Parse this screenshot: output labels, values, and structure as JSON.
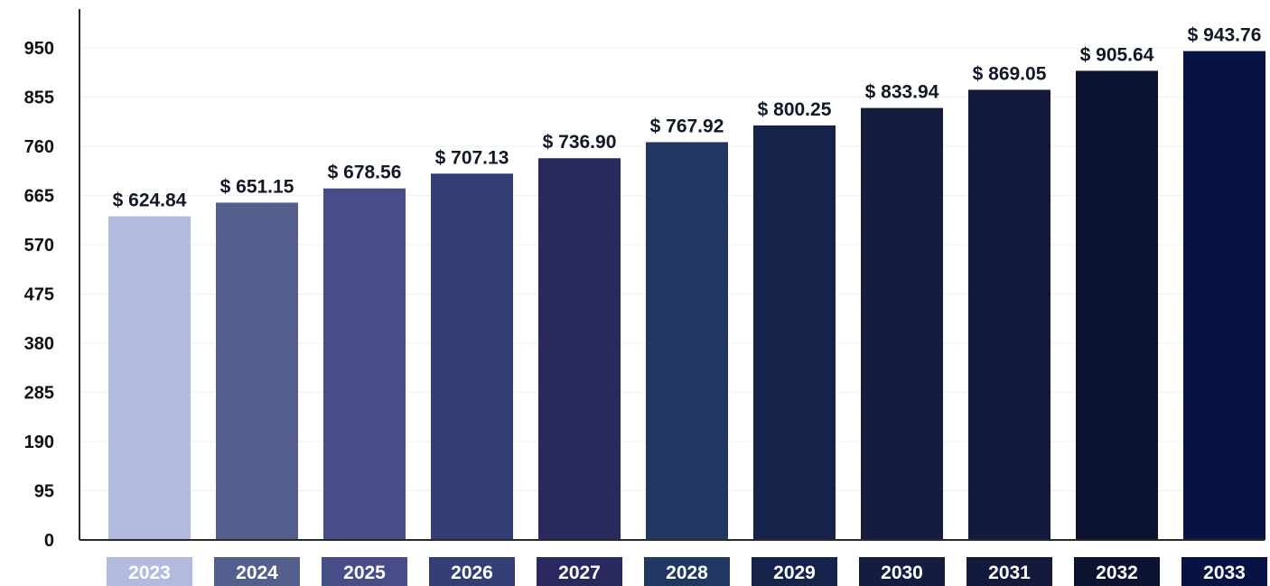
{
  "chart_data": {
    "type": "bar",
    "title": "",
    "xlabel": "",
    "ylabel": "",
    "categories": [
      "2023",
      "2024",
      "2025",
      "2026",
      "2027",
      "2028",
      "2029",
      "2030",
      "2031",
      "2032",
      "2033"
    ],
    "values": [
      624.84,
      651.15,
      678.56,
      707.13,
      736.9,
      767.92,
      800.25,
      833.94,
      869.05,
      905.64,
      943.76
    ],
    "value_labels": [
      "$ 624.84",
      "$ 651.15",
      "$ 678.56",
      "$ 707.13",
      "$ 736.90",
      "$ 767.92",
      "$ 800.25",
      "$ 833.94",
      "$ 869.05",
      "$ 905.64",
      "$ 943.76"
    ],
    "ylim": [
      0,
      1000
    ],
    "yticks": [
      0,
      95,
      190,
      285,
      380,
      475,
      570,
      665,
      760,
      855,
      950
    ],
    "ytick_labels": [
      "0",
      "95",
      "190",
      "285",
      "380",
      "475",
      "570",
      "665",
      "760",
      "855",
      "950"
    ],
    "grid": true,
    "legend": "none",
    "colors": [
      "#b1bbe0",
      "#545f8e",
      "#464d87",
      "#343d74",
      "#29295d",
      "#203761",
      "#15224a",
      "#141d3f",
      "#141a3c",
      "#0b1330",
      "#081243"
    ]
  }
}
